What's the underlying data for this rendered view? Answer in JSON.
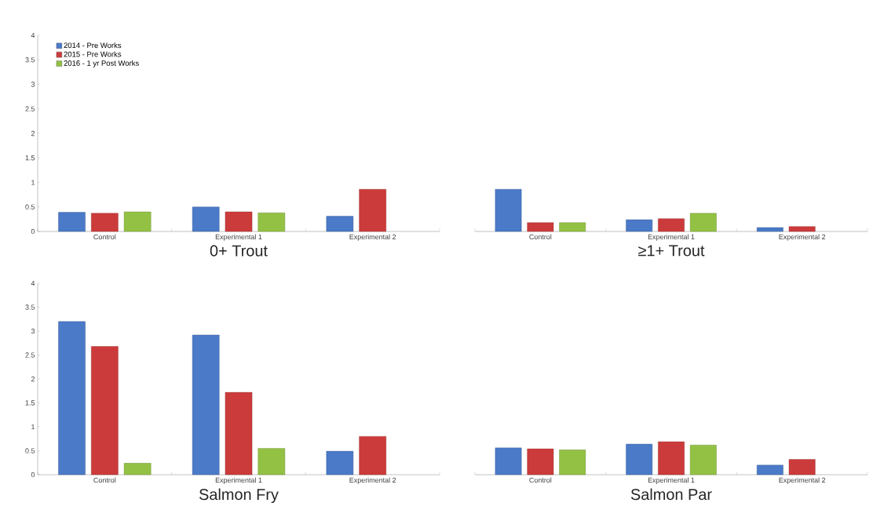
{
  "chart_data": [
    {
      "type": "bar",
      "title": "0+ Trout",
      "categories": [
        "Control",
        "Experimental 1",
        "Experimental 2"
      ],
      "ylim": [
        0,
        4
      ],
      "yticks": [
        0,
        0.5,
        1,
        1.5,
        2,
        2.5,
        3,
        3.5,
        4
      ],
      "legend": "top left",
      "series": [
        {
          "name": "2014 - Pre Works",
          "color": "#4a7ac8",
          "values": [
            0.39,
            0.5,
            0.31
          ]
        },
        {
          "name": "2015 - Pre Works",
          "color": "#cc3b3b",
          "values": [
            0.37,
            0.4,
            0.86
          ]
        },
        {
          "name": "2016 - 1 yr Post Works",
          "color": "#93c144",
          "values": [
            0.4,
            0.38,
            null
          ]
        }
      ]
    },
    {
      "type": "bar",
      "title": "≥1+ Trout",
      "categories": [
        "Control",
        "Experimental 1",
        "Experimental 2"
      ],
      "ylim": [
        0,
        4
      ],
      "yticks": [
        0,
        0.5,
        1,
        1.5,
        2,
        2.5,
        3,
        3.5,
        4
      ],
      "tick_labels": "x",
      "series": [
        {
          "color": "#4a7ac8",
          "values": [
            0.86,
            0.24,
            0.08
          ]
        },
        {
          "color": "#cc3b3b",
          "values": [
            0.18,
            0.26,
            0.1
          ]
        },
        {
          "color": "#93c144",
          "values": [
            0.18,
            0.37,
            null
          ]
        }
      ]
    },
    {
      "type": "bar",
      "title": "Salmon Fry",
      "categories": [
        "Control",
        "Experimental 1",
        "Experimental 2"
      ],
      "ylim": [
        0,
        4
      ],
      "yticks": [
        0,
        0.5,
        1,
        1.5,
        2,
        2.5,
        3,
        3.5,
        4
      ],
      "series": [
        {
          "color": "#4a7ac8",
          "values": [
            3.2,
            2.92,
            0.49
          ]
        },
        {
          "color": "#cc3b3b",
          "values": [
            2.68,
            1.72,
            0.8
          ]
        },
        {
          "color": "#93c144",
          "values": [
            0.24,
            0.55,
            null
          ]
        }
      ]
    },
    {
      "type": "bar",
      "title": "Salmon Par",
      "categories": [
        "Control",
        "Experimental 1",
        "Experimental 2"
      ],
      "ylim": [
        0,
        4
      ],
      "yticks": [
        0,
        0.5,
        1,
        1.5,
        2,
        2.5,
        3,
        3.5,
        4
      ],
      "tick_labels": "x",
      "series": [
        {
          "color": "#4a7ac8",
          "values": [
            0.56,
            0.64,
            0.2
          ]
        },
        {
          "color": "#cc3b3b",
          "values": [
            0.54,
            0.69,
            0.32
          ]
        },
        {
          "color": "#93c144",
          "values": [
            0.52,
            0.62,
            null
          ]
        }
      ]
    }
  ]
}
